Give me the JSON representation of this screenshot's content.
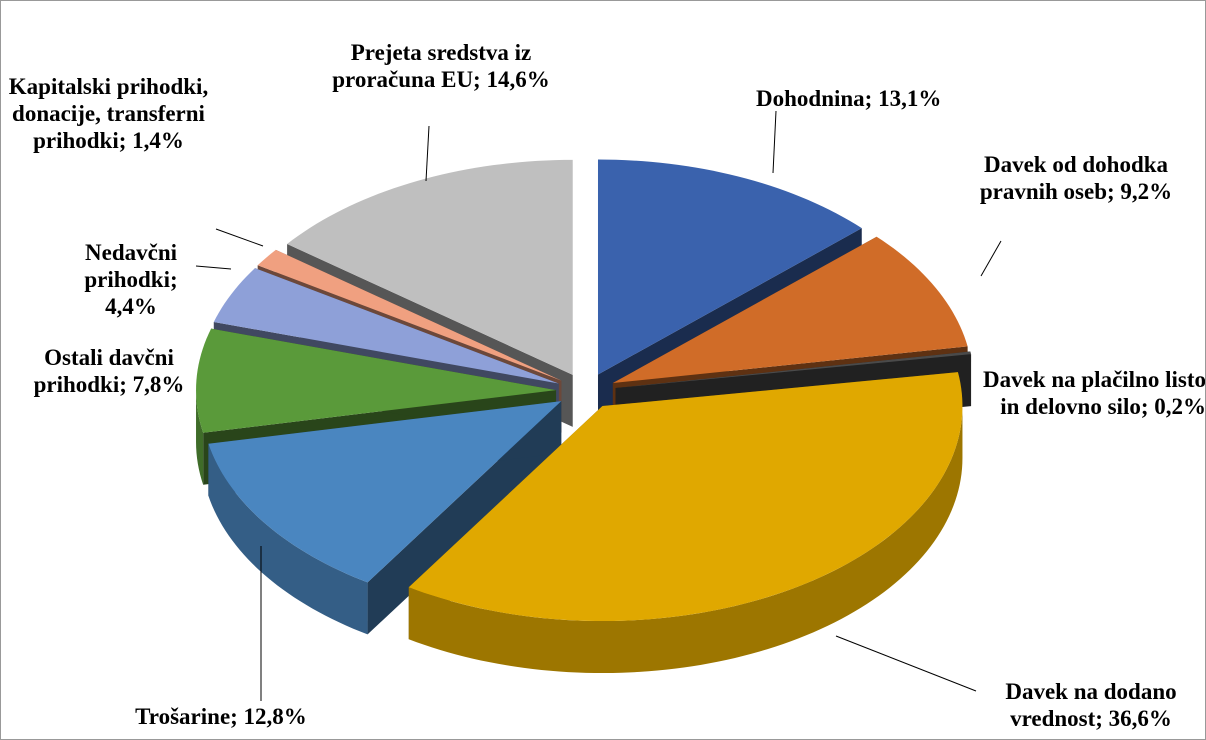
{
  "chart_data": {
    "type": "pie",
    "style": "3d-exploded",
    "values": [
      13.1,
      9.2,
      0.2,
      36.6,
      12.8,
      7.8,
      4.4,
      1.4,
      14.6
    ],
    "value_labels": [
      "Dohodnina; 13,1%",
      "Davek od dohodka pravnih oseb; 9,2%",
      "Davek na plačilno listo in delovno silo; 0,2%",
      "Davek na dodano vrednost; 36,6%",
      "Trošarine; 12,8%",
      "Ostali davčni prihodki; 7,8%",
      "Nedavčni prihodki; 4,4%",
      "Kapitalski prihodki, donacije, transferni prihodki; 1,4%",
      "Prejeta sredstva iz proračuna EU; 14,6%"
    ],
    "colors": [
      "#3a62ad",
      "#d06c28",
      "#4a4a4a",
      "#e0a800",
      "#4a86c0",
      "#5a9a3a",
      "#8ea0d8",
      "#f0a080",
      "#bfbfbf"
    ]
  }
}
